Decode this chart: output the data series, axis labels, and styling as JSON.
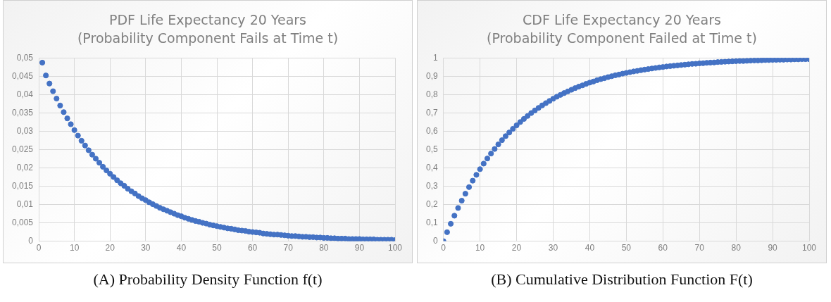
{
  "chart_data": [
    {
      "type": "scatter",
      "title": "PDF Life Expectancy 20 Years",
      "subtitle": "(Probability Component Fails at Time t)",
      "annotations": [
        "(A) Probability Density Function f(t)"
      ],
      "marker": "circle",
      "grid": true,
      "xlim": [
        0,
        100
      ],
      "xticks": [
        0,
        10,
        20,
        30,
        40,
        50,
        60,
        70,
        80,
        90,
        100
      ],
      "ylim": [
        0,
        0.05
      ],
      "yticks": [
        {
          "value": 0,
          "label": "0"
        },
        {
          "value": 0.005,
          "label": "0,005"
        },
        {
          "value": 0.01,
          "label": "0,01"
        },
        {
          "value": 0.015,
          "label": "0,015"
        },
        {
          "value": 0.02,
          "label": "0,02"
        },
        {
          "value": 0.025,
          "label": "0,025"
        },
        {
          "value": 0.03,
          "label": "0,03"
        },
        {
          "value": 0.035,
          "label": "0,035"
        },
        {
          "value": 0.04,
          "label": "0,04"
        },
        {
          "value": 0.045,
          "label": "0,045"
        },
        {
          "value": 0.05,
          "label": "0,05"
        }
      ],
      "x": [
        1,
        2,
        3,
        4,
        5,
        6,
        7,
        8,
        9,
        10,
        11,
        12,
        13,
        14,
        15,
        16,
        17,
        18,
        19,
        20,
        21,
        22,
        23,
        24,
        25,
        26,
        27,
        28,
        29,
        30,
        31,
        32,
        33,
        34,
        35,
        36,
        37,
        38,
        39,
        40,
        41,
        42,
        43,
        44,
        45,
        46,
        47,
        48,
        49,
        50,
        51,
        52,
        53,
        54,
        55,
        56,
        57,
        58,
        59,
        60,
        61,
        62,
        63,
        64,
        65,
        66,
        67,
        68,
        69,
        70,
        71,
        72,
        73,
        74,
        75,
        76,
        77,
        78,
        79,
        80,
        81,
        82,
        83,
        84,
        85,
        86,
        87,
        88,
        89,
        90,
        91,
        92,
        93,
        94,
        95,
        96,
        97,
        98,
        99,
        100
      ],
      "series": [
        {
          "color": "#4472c4",
          "values": [
            0.0487,
            0.0452,
            0.043,
            0.0409,
            0.0389,
            0.037,
            0.0352,
            0.0335,
            0.0319,
            0.0303,
            0.0288,
            0.0274,
            0.0261,
            0.0248,
            0.0236,
            0.0225,
            0.0214,
            0.0203,
            0.0193,
            0.0184,
            0.0175,
            0.0166,
            0.0158,
            0.0151,
            0.0143,
            0.0136,
            0.013,
            0.0123,
            0.0117,
            0.0112,
            0.0106,
            0.0101,
            0.0096,
            0.0091,
            0.0087,
            0.0083,
            0.0079,
            0.0075,
            0.0071,
            0.0068,
            0.0064,
            0.0061,
            0.0058,
            0.0055,
            0.0053,
            0.005,
            0.0048,
            0.0045,
            0.0043,
            0.0041,
            0.0039,
            0.0037,
            0.0035,
            0.0034,
            0.0032,
            0.003,
            0.0029,
            0.0028,
            0.0026,
            0.0025,
            0.0024,
            0.0023,
            0.0021,
            0.002,
            0.0019,
            0.0018,
            0.0018,
            0.0017,
            0.0016,
            0.0015,
            0.0014,
            0.0014,
            0.0013,
            0.0012,
            0.0012,
            0.0011,
            0.0011,
            0.001,
            0.001,
            0.0009,
            0.0009,
            0.0008,
            0.0008,
            0.0007,
            0.0007,
            0.0007,
            0.0006,
            0.0006,
            0.0006,
            0.0006,
            0.0005,
            0.0005,
            0.0005,
            0.0005,
            0.0004,
            0.0004,
            0.0004,
            0.0004,
            0.0004,
            0.0003
          ]
        }
      ]
    },
    {
      "type": "scatter",
      "title": "CDF Life Expectancy 20 Years",
      "subtitle": "(Probability Component Failed at Time t)",
      "annotations": [
        "(B) Cumulative Distribution Function F(t)"
      ],
      "marker": "circle",
      "grid": true,
      "xlim": [
        0,
        100
      ],
      "xticks": [
        0,
        10,
        20,
        30,
        40,
        50,
        60,
        70,
        80,
        90,
        100
      ],
      "ylim": [
        0,
        1
      ],
      "yticks": [
        {
          "value": 0,
          "label": "0"
        },
        {
          "value": 0.1,
          "label": "0,1"
        },
        {
          "value": 0.2,
          "label": "0,2"
        },
        {
          "value": 0.3,
          "label": "0,3"
        },
        {
          "value": 0.4,
          "label": "0,4"
        },
        {
          "value": 0.5,
          "label": "0,5"
        },
        {
          "value": 0.6,
          "label": "0,6"
        },
        {
          "value": 0.7,
          "label": "0,7"
        },
        {
          "value": 0.8,
          "label": "0,8"
        },
        {
          "value": 0.9,
          "label": "0,9"
        },
        {
          "value": 1,
          "label": "1"
        }
      ],
      "x": [
        0,
        1,
        2,
        3,
        4,
        5,
        6,
        7,
        8,
        9,
        10,
        11,
        12,
        13,
        14,
        15,
        16,
        17,
        18,
        19,
        20,
        21,
        22,
        23,
        24,
        25,
        26,
        27,
        28,
        29,
        30,
        31,
        32,
        33,
        34,
        35,
        36,
        37,
        38,
        39,
        40,
        41,
        42,
        43,
        44,
        45,
        46,
        47,
        48,
        49,
        50,
        51,
        52,
        53,
        54,
        55,
        56,
        57,
        58,
        59,
        60,
        61,
        62,
        63,
        64,
        65,
        66,
        67,
        68,
        69,
        70,
        71,
        72,
        73,
        74,
        75,
        76,
        77,
        78,
        79,
        80,
        81,
        82,
        83,
        84,
        85,
        86,
        87,
        88,
        89,
        90,
        91,
        92,
        93,
        94,
        95,
        96,
        97,
        98,
        99,
        100
      ],
      "series": [
        {
          "color": "#4472c4",
          "values": [
            0,
            0.049,
            0.095,
            0.139,
            0.181,
            0.221,
            0.259,
            0.295,
            0.33,
            0.362,
            0.393,
            0.423,
            0.451,
            0.478,
            0.503,
            0.528,
            0.551,
            0.573,
            0.593,
            0.613,
            0.632,
            0.65,
            0.667,
            0.683,
            0.699,
            0.713,
            0.727,
            0.741,
            0.753,
            0.765,
            0.777,
            0.788,
            0.798,
            0.808,
            0.817,
            0.826,
            0.835,
            0.843,
            0.85,
            0.858,
            0.865,
            0.871,
            0.878,
            0.884,
            0.889,
            0.895,
            0.9,
            0.905,
            0.909,
            0.914,
            0.918,
            0.922,
            0.926,
            0.929,
            0.933,
            0.936,
            0.939,
            0.942,
            0.945,
            0.948,
            0.95,
            0.953,
            0.955,
            0.957,
            0.959,
            0.961,
            0.963,
            0.965,
            0.967,
            0.968,
            0.97,
            0.971,
            0.973,
            0.974,
            0.975,
            0.977,
            0.978,
            0.979,
            0.98,
            0.981,
            0.982,
            0.983,
            0.983,
            0.984,
            0.985,
            0.986,
            0.986,
            0.987,
            0.988,
            0.988,
            0.989,
            0.989,
            0.99,
            0.99,
            0.991,
            0.991,
            0.992,
            0.992,
            0.993,
            0.993,
            0.993
          ]
        }
      ]
    }
  ]
}
